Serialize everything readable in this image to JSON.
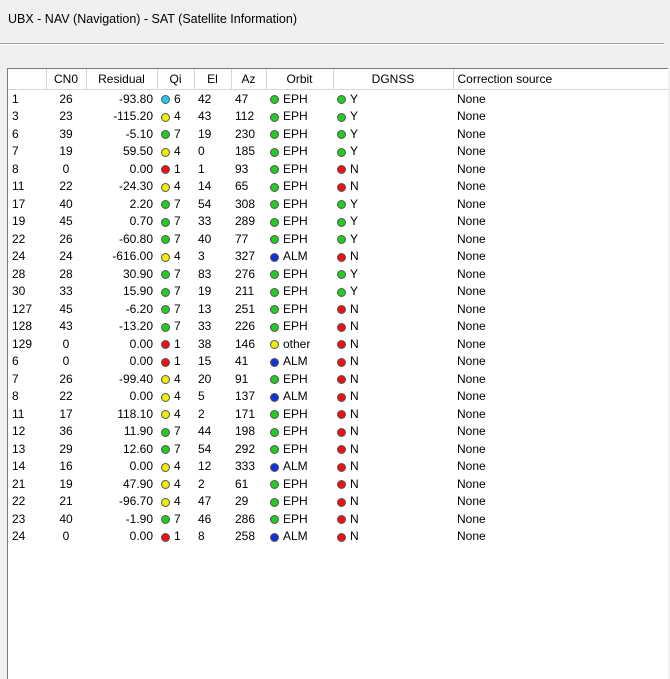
{
  "window": {
    "title": "UBX - NAV (Navigation) - SAT (Satellite Information)"
  },
  "columns": [
    "",
    "CN0",
    "Residual",
    "Qi",
    "El",
    "Az",
    "Orbit",
    "DGNSS",
    "Correction source"
  ],
  "colors": {
    "green": "#22cc22",
    "yellow": "#eeee00",
    "red": "#ee1111",
    "cyan": "#22ccee",
    "blue": "#1133dd"
  },
  "rows": [
    {
      "id": "1",
      "cn0": "26",
      "residual": "-93.80",
      "qi": "6",
      "qi_color": "cyan",
      "el": "42",
      "az": "47",
      "orbit": "EPH",
      "orbit_color": "green",
      "dgnss": "Y",
      "dgnss_color": "green",
      "source": "None"
    },
    {
      "id": "3",
      "cn0": "23",
      "residual": "-115.20",
      "qi": "4",
      "qi_color": "yellow",
      "el": "43",
      "az": "112",
      "orbit": "EPH",
      "orbit_color": "green",
      "dgnss": "Y",
      "dgnss_color": "green",
      "source": "None"
    },
    {
      "id": "6",
      "cn0": "39",
      "residual": "-5.10",
      "qi": "7",
      "qi_color": "green",
      "el": "19",
      "az": "230",
      "orbit": "EPH",
      "orbit_color": "green",
      "dgnss": "Y",
      "dgnss_color": "green",
      "source": "None"
    },
    {
      "id": "7",
      "cn0": "19",
      "residual": "59.50",
      "qi": "4",
      "qi_color": "yellow",
      "el": "0",
      "az": "185",
      "orbit": "EPH",
      "orbit_color": "green",
      "dgnss": "Y",
      "dgnss_color": "green",
      "source": "None"
    },
    {
      "id": "8",
      "cn0": "0",
      "residual": "0.00",
      "qi": "1",
      "qi_color": "red",
      "el": "1",
      "az": "93",
      "orbit": "EPH",
      "orbit_color": "green",
      "dgnss": "N",
      "dgnss_color": "red",
      "source": "None"
    },
    {
      "id": "11",
      "cn0": "22",
      "residual": "-24.30",
      "qi": "4",
      "qi_color": "yellow",
      "el": "14",
      "az": "65",
      "orbit": "EPH",
      "orbit_color": "green",
      "dgnss": "N",
      "dgnss_color": "red",
      "source": "None"
    },
    {
      "id": "17",
      "cn0": "40",
      "residual": "2.20",
      "qi": "7",
      "qi_color": "green",
      "el": "54",
      "az": "308",
      "orbit": "EPH",
      "orbit_color": "green",
      "dgnss": "Y",
      "dgnss_color": "green",
      "source": "None"
    },
    {
      "id": "19",
      "cn0": "45",
      "residual": "0.70",
      "qi": "7",
      "qi_color": "green",
      "el": "33",
      "az": "289",
      "orbit": "EPH",
      "orbit_color": "green",
      "dgnss": "Y",
      "dgnss_color": "green",
      "source": "None"
    },
    {
      "id": "22",
      "cn0": "26",
      "residual": "-60.80",
      "qi": "7",
      "qi_color": "green",
      "el": "40",
      "az": "77",
      "orbit": "EPH",
      "orbit_color": "green",
      "dgnss": "Y",
      "dgnss_color": "green",
      "source": "None"
    },
    {
      "id": "24",
      "cn0": "24",
      "residual": "-616.00",
      "qi": "4",
      "qi_color": "yellow",
      "el": "3",
      "az": "327",
      "orbit": "ALM",
      "orbit_color": "blue",
      "dgnss": "N",
      "dgnss_color": "red",
      "source": "None"
    },
    {
      "id": "28",
      "cn0": "28",
      "residual": "30.90",
      "qi": "7",
      "qi_color": "green",
      "el": "83",
      "az": "276",
      "orbit": "EPH",
      "orbit_color": "green",
      "dgnss": "Y",
      "dgnss_color": "green",
      "source": "None"
    },
    {
      "id": "30",
      "cn0": "33",
      "residual": "15.90",
      "qi": "7",
      "qi_color": "green",
      "el": "19",
      "az": "211",
      "orbit": "EPH",
      "orbit_color": "green",
      "dgnss": "Y",
      "dgnss_color": "green",
      "source": "None"
    },
    {
      "id": "127",
      "cn0": "45",
      "residual": "-6.20",
      "qi": "7",
      "qi_color": "green",
      "el": "13",
      "az": "251",
      "orbit": "EPH",
      "orbit_color": "green",
      "dgnss": "N",
      "dgnss_color": "red",
      "source": "None"
    },
    {
      "id": "128",
      "cn0": "43",
      "residual": "-13.20",
      "qi": "7",
      "qi_color": "green",
      "el": "33",
      "az": "226",
      "orbit": "EPH",
      "orbit_color": "green",
      "dgnss": "N",
      "dgnss_color": "red",
      "source": "None"
    },
    {
      "id": "129",
      "cn0": "0",
      "residual": "0.00",
      "qi": "1",
      "qi_color": "red",
      "el": "38",
      "az": "146",
      "orbit": "other",
      "orbit_color": "yellow",
      "dgnss": "N",
      "dgnss_color": "red",
      "source": "None"
    },
    {
      "id": "6",
      "cn0": "0",
      "residual": "0.00",
      "qi": "1",
      "qi_color": "red",
      "el": "15",
      "az": "41",
      "orbit": "ALM",
      "orbit_color": "blue",
      "dgnss": "N",
      "dgnss_color": "red",
      "source": "None"
    },
    {
      "id": "7",
      "cn0": "26",
      "residual": "-99.40",
      "qi": "4",
      "qi_color": "yellow",
      "el": "20",
      "az": "91",
      "orbit": "EPH",
      "orbit_color": "green",
      "dgnss": "N",
      "dgnss_color": "red",
      "source": "None"
    },
    {
      "id": "8",
      "cn0": "22",
      "residual": "0.00",
      "qi": "4",
      "qi_color": "yellow",
      "el": "5",
      "az": "137",
      "orbit": "ALM",
      "orbit_color": "blue",
      "dgnss": "N",
      "dgnss_color": "red",
      "source": "None"
    },
    {
      "id": "11",
      "cn0": "17",
      "residual": "118.10",
      "qi": "4",
      "qi_color": "yellow",
      "el": "2",
      "az": "171",
      "orbit": "EPH",
      "orbit_color": "green",
      "dgnss": "N",
      "dgnss_color": "red",
      "source": "None"
    },
    {
      "id": "12",
      "cn0": "36",
      "residual": "11.90",
      "qi": "7",
      "qi_color": "green",
      "el": "44",
      "az": "198",
      "orbit": "EPH",
      "orbit_color": "green",
      "dgnss": "N",
      "dgnss_color": "red",
      "source": "None"
    },
    {
      "id": "13",
      "cn0": "29",
      "residual": "12.60",
      "qi": "7",
      "qi_color": "green",
      "el": "54",
      "az": "292",
      "orbit": "EPH",
      "orbit_color": "green",
      "dgnss": "N",
      "dgnss_color": "red",
      "source": "None"
    },
    {
      "id": "14",
      "cn0": "16",
      "residual": "0.00",
      "qi": "4",
      "qi_color": "yellow",
      "el": "12",
      "az": "333",
      "orbit": "ALM",
      "orbit_color": "blue",
      "dgnss": "N",
      "dgnss_color": "red",
      "source": "None"
    },
    {
      "id": "21",
      "cn0": "19",
      "residual": "47.90",
      "qi": "4",
      "qi_color": "yellow",
      "el": "2",
      "az": "61",
      "orbit": "EPH",
      "orbit_color": "green",
      "dgnss": "N",
      "dgnss_color": "red",
      "source": "None"
    },
    {
      "id": "22",
      "cn0": "21",
      "residual": "-96.70",
      "qi": "4",
      "qi_color": "yellow",
      "el": "47",
      "az": "29",
      "orbit": "EPH",
      "orbit_color": "green",
      "dgnss": "N",
      "dgnss_color": "red",
      "source": "None"
    },
    {
      "id": "23",
      "cn0": "40",
      "residual": "-1.90",
      "qi": "7",
      "qi_color": "green",
      "el": "46",
      "az": "286",
      "orbit": "EPH",
      "orbit_color": "green",
      "dgnss": "N",
      "dgnss_color": "red",
      "source": "None"
    },
    {
      "id": "24",
      "cn0": "0",
      "residual": "0.00",
      "qi": "1",
      "qi_color": "red",
      "el": "8",
      "az": "258",
      "orbit": "ALM",
      "orbit_color": "blue",
      "dgnss": "N",
      "dgnss_color": "red",
      "source": "None"
    }
  ]
}
